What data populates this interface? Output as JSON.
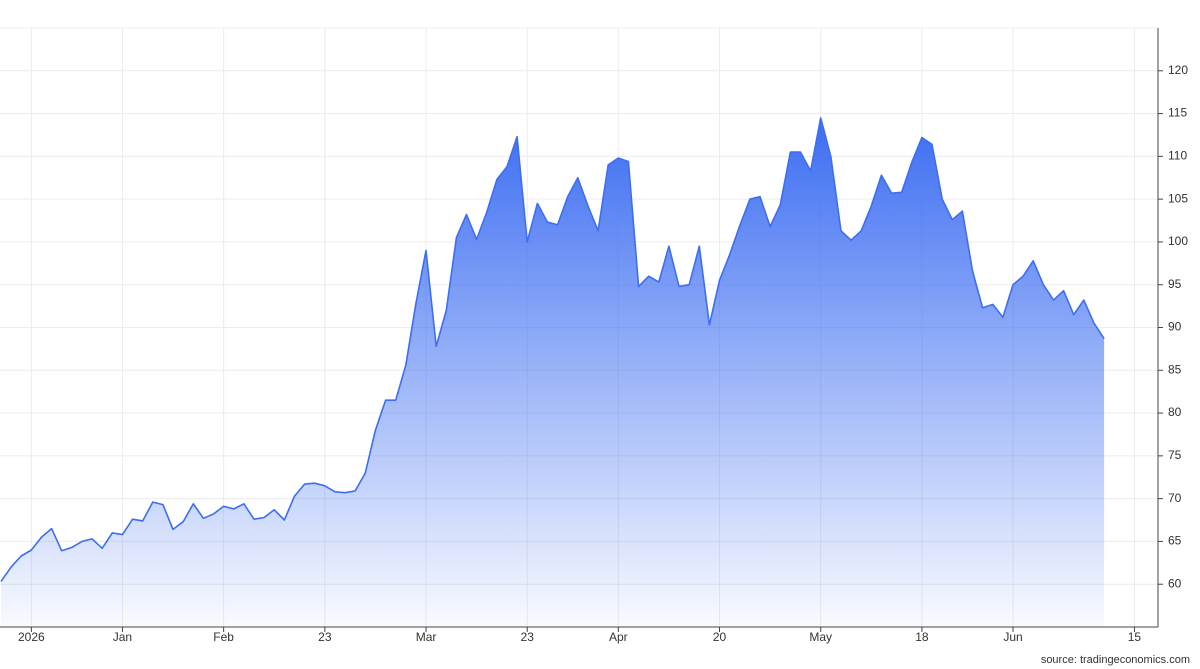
{
  "chart_data": {
    "type": "area",
    "categories": [
      null,
      null,
      null,
      "2026",
      null,
      null,
      null,
      null,
      null,
      null,
      null,
      null,
      "Jan",
      null,
      null,
      null,
      null,
      null,
      null,
      null,
      null,
      null,
      "Feb",
      null,
      null,
      null,
      null,
      null,
      null,
      null,
      null,
      null,
      "23",
      null,
      null,
      null,
      null,
      null,
      null,
      null,
      null,
      null,
      "Mar",
      null,
      null,
      null,
      null,
      null,
      null,
      null,
      null,
      null,
      "23",
      null,
      null,
      null,
      null,
      null,
      null,
      null,
      null,
      "Apr",
      null,
      null,
      null,
      null,
      null,
      null,
      null,
      null,
      null,
      "20",
      null,
      null,
      null,
      null,
      null,
      null,
      null,
      null,
      null,
      "May",
      null,
      null,
      null,
      null,
      null,
      null,
      null,
      null,
      null,
      "18",
      null,
      null,
      null,
      null,
      null,
      null,
      null,
      null,
      "Jun",
      null,
      null,
      null,
      null,
      null,
      null,
      null,
      null,
      null,
      null,
      null,
      "15"
    ],
    "values": [
      60.3,
      62,
      63.3,
      64,
      65.5,
      66.5,
      63.9,
      64.3,
      65,
      65.3,
      64.2,
      66,
      65.8,
      67.6,
      67.4,
      69.6,
      69.3,
      66.4,
      67.3,
      69.4,
      67.7,
      68.2,
      69.1,
      68.8,
      69.4,
      67.6,
      67.8,
      68.7,
      67.5,
      70.3,
      71.7,
      71.8,
      71.5,
      70.8,
      70.7,
      70.9,
      73,
      78,
      81.5,
      81.5,
      85.6,
      92.8,
      99,
      87.8,
      92,
      100.5,
      103.2,
      100.3,
      103.5,
      107.3,
      108.8,
      112.3,
      100,
      104.5,
      102.3,
      102,
      105.3,
      107.5,
      104.2,
      101.3,
      109,
      109.8,
      109.4,
      94.8,
      96,
      95.3,
      99.5,
      94.8,
      95,
      99.5,
      90.3,
      95.5,
      98.5,
      101.9,
      105,
      105.3,
      101.8,
      104.3,
      110.5,
      110.5,
      108.3,
      114.5,
      110,
      101.3,
      100.2,
      101.3,
      104.2,
      107.8,
      105.7,
      105.8,
      109.3,
      112.2,
      111.4,
      105,
      102.6,
      103.6,
      96.6,
      92.3,
      92.7,
      91.2,
      95,
      96,
      97.8,
      95,
      93.2,
      94.3,
      91.5,
      93.2,
      90.5,
      88.7,
      null,
      null,
      null
    ],
    "color": "#3d6ef2",
    "ylim": [
      55,
      125
    ],
    "yticks": [
      60,
      65,
      70,
      75,
      80,
      85,
      90,
      95,
      100,
      105,
      110,
      115,
      120
    ],
    "grid": true,
    "source": "source: tradingeconomics.com"
  }
}
